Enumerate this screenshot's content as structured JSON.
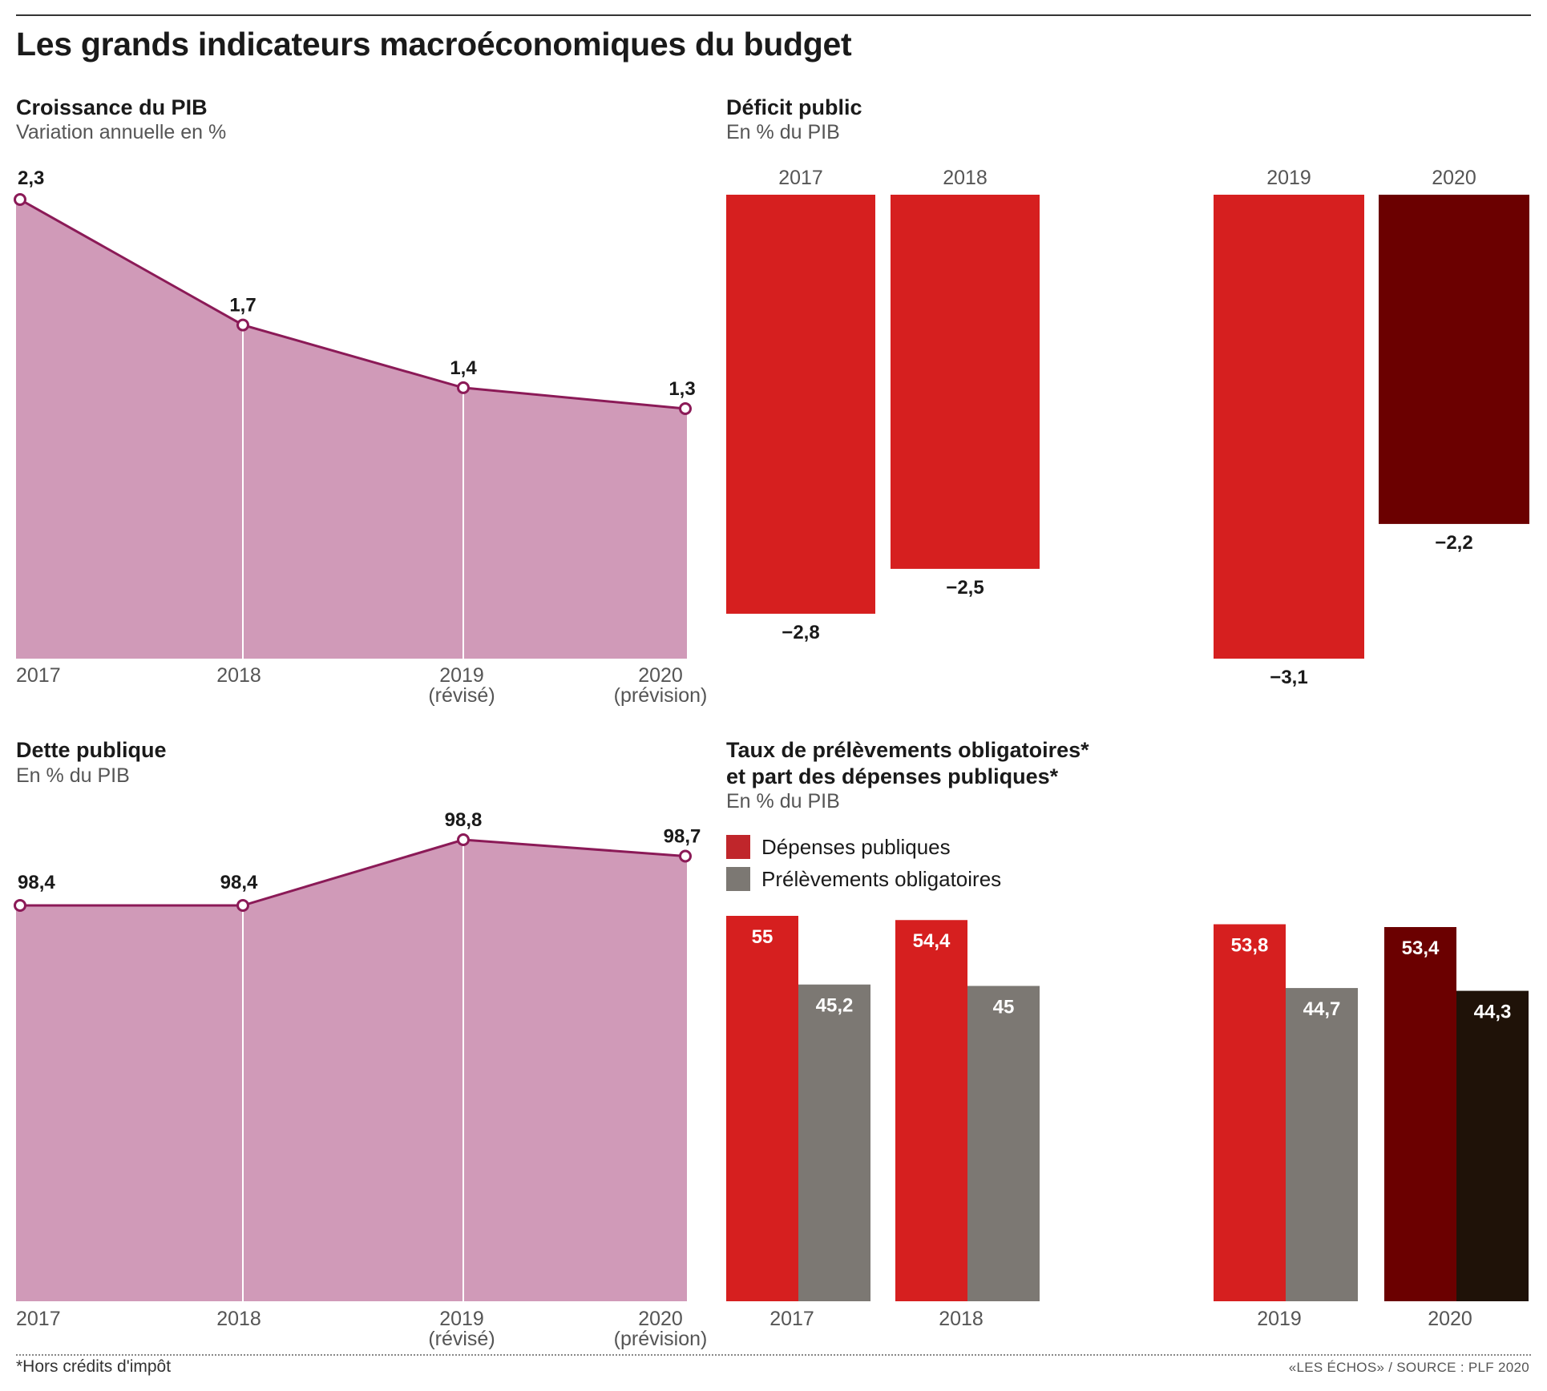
{
  "title": "Les grands indicateurs macroéconomiques du budget",
  "footnote": "*Hors crédits d'impôt",
  "source": "«LES ÉCHOS» / SOURCE : PLF 2020",
  "colors": {
    "area": "#d09ab8",
    "line": "#8b1a57",
    "red": "#d61f1f",
    "darkred": "#6b0000",
    "grey": "#7c7873",
    "black": "#1f1208"
  },
  "panels": {
    "growth": {
      "title": "Croissance du PIB",
      "subtitle": "Variation annuelle en %"
    },
    "deficit": {
      "title": "Déficit public",
      "subtitle": "En % du PIB"
    },
    "debt": {
      "title": "Dette publique",
      "subtitle": "En % du PIB"
    },
    "taxes": {
      "title_line1": "Taux de prélèvements obligatoires*",
      "title_line2": "et part des dépenses publiques*",
      "subtitle": "En % du PIB"
    }
  },
  "chart_data": [
    {
      "type": "area",
      "title": "Croissance du PIB",
      "subtitle": "Variation annuelle en %",
      "x": [
        "2017",
        "2018",
        "2019",
        "2020"
      ],
      "x_sublabels": [
        "",
        "",
        "(révisé)",
        "(prévision)"
      ],
      "values": [
        2.3,
        1.7,
        1.4,
        1.3
      ],
      "value_labels": [
        "2,3",
        "1,7",
        "1,4",
        "1,3"
      ]
    },
    {
      "type": "bar",
      "title": "Déficit public",
      "subtitle": "En % du PIB",
      "categories": [
        "2017",
        "2018",
        "2019",
        "2020"
      ],
      "values": [
        -2.8,
        -2.5,
        -3.1,
        -2.2
      ],
      "value_labels": [
        "−2,8",
        "−2,5",
        "−3,1",
        "−2,2"
      ]
    },
    {
      "type": "area",
      "title": "Dette publique",
      "subtitle": "En % du PIB",
      "x": [
        "2017",
        "2018",
        "2019",
        "2020"
      ],
      "x_sublabels": [
        "",
        "",
        "(révisé)",
        "(prévision)"
      ],
      "values": [
        98.4,
        98.4,
        98.8,
        98.7
      ],
      "value_labels": [
        "98,4",
        "98,4",
        "98,8",
        "98,7"
      ]
    },
    {
      "type": "bar",
      "title": "Taux de prélèvements obligatoires* et part des dépenses publiques*",
      "subtitle": "En % du PIB",
      "categories": [
        "2017",
        "2018",
        "2019",
        "2020"
      ],
      "series": [
        {
          "name": "Dépenses publiques",
          "values": [
            55,
            54.4,
            53.8,
            53.4
          ],
          "value_labels": [
            "55",
            "54,4",
            "53,8",
            "53,4"
          ]
        },
        {
          "name": "Prélèvements obligatoires",
          "values": [
            45.2,
            45,
            44.7,
            44.3
          ],
          "value_labels": [
            "45,2",
            "45",
            "44,7",
            "44,3"
          ]
        }
      ]
    }
  ]
}
